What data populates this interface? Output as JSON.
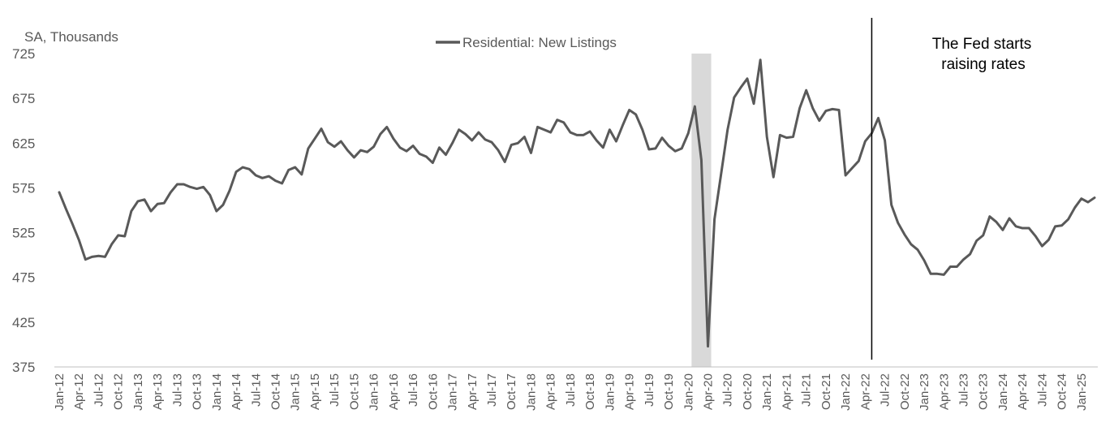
{
  "chart_data": {
    "type": "line",
    "unit_label": "SA, Thousands",
    "ylim": [
      375,
      725
    ],
    "yticks": [
      375,
      425,
      475,
      525,
      575,
      625,
      675,
      725
    ],
    "xtick_labels": [
      "Jan-12",
      "Apr-12",
      "Jul-12",
      "Oct-12",
      "Jan-13",
      "Apr-13",
      "Jul-13",
      "Oct-13",
      "Jan-14",
      "Apr-14",
      "Jul-14",
      "Oct-14",
      "Jan-15",
      "Apr-15",
      "Jul-15",
      "Oct-15",
      "Jan-16",
      "Apr-16",
      "Jul-16",
      "Oct-16",
      "Jan-17",
      "Apr-17",
      "Jul-17",
      "Oct-17",
      "Jan-18",
      "Apr-18",
      "Jul-18",
      "Oct-18",
      "Jan-19",
      "Apr-19",
      "Jul-19",
      "Oct-19",
      "Jan-20",
      "Apr-20",
      "Jul-20",
      "Oct-20",
      "Jan-21",
      "Apr-21",
      "Jul-21",
      "Oct-21",
      "Jan-22",
      "Apr-22",
      "Jul-22",
      "Oct-22",
      "Jan-23",
      "Apr-23",
      "Jul-23",
      "Oct-23",
      "Jan-24",
      "Apr-24",
      "Jul-24",
      "Oct-24",
      "Jan-25"
    ],
    "x_start": "Jan-12",
    "series": [
      {
        "name": "Residential: New Listings",
        "color": "#595959",
        "values": [
          570,
          552,
          535,
          517,
          495,
          498,
          499,
          498,
          512,
          522,
          521,
          549,
          560,
          562,
          549,
          557,
          558,
          570,
          579,
          579,
          576,
          574,
          576,
          567,
          549,
          556,
          572,
          593,
          598,
          596,
          589,
          586,
          588,
          583,
          580,
          595,
          598,
          590,
          619,
          630,
          641,
          626,
          621,
          627,
          617,
          609,
          617,
          615,
          621,
          635,
          643,
          630,
          620,
          616,
          622,
          613,
          610,
          603,
          620,
          612,
          625,
          640,
          635,
          628,
          637,
          629,
          626,
          617,
          604,
          623,
          625,
          632,
          614,
          643,
          640,
          637,
          651,
          648,
          637,
          634,
          634,
          638,
          628,
          620,
          640,
          627,
          645,
          662,
          657,
          640,
          618,
          619,
          631,
          622,
          616,
          619,
          636,
          666,
          606,
          398,
          540,
          590,
          640,
          676,
          687,
          697,
          669,
          718,
          632,
          587,
          634,
          631,
          632,
          664,
          684,
          664,
          650,
          661,
          663,
          662,
          589,
          597,
          605,
          627,
          636,
          653,
          628,
          556,
          536,
          523,
          512,
          506,
          494,
          479,
          479,
          478,
          487,
          487,
          495,
          501,
          516,
          522,
          543,
          537,
          528,
          541,
          532,
          530,
          530,
          521,
          510,
          517,
          532,
          533,
          540,
          553,
          563,
          559,
          564
        ]
      }
    ],
    "shaded_period": [
      "Feb-20",
      "Apr-20"
    ],
    "vertical_line_at": "May-22",
    "annotation": {
      "line1": "The Fed starts",
      "line2": "raising rates"
    },
    "grid": false,
    "legend_position": "top-center"
  }
}
